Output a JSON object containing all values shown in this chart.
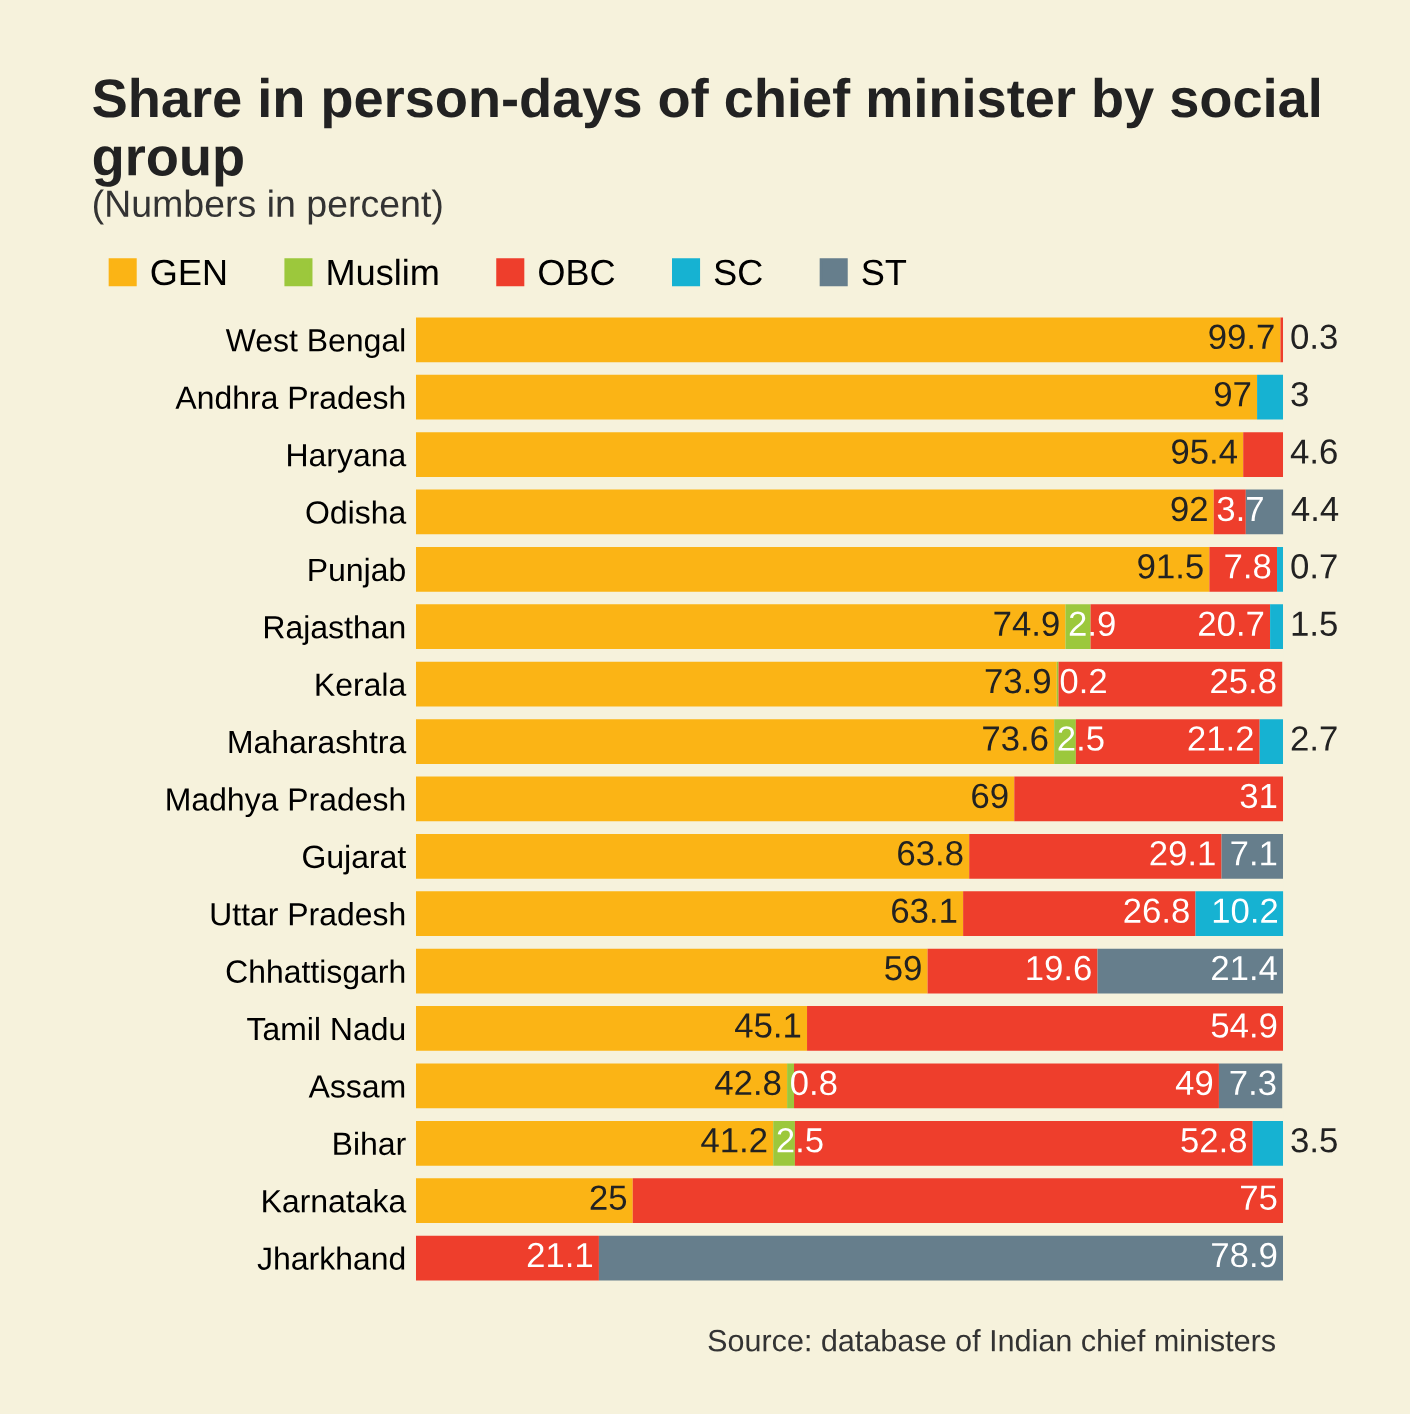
{
  "chart_data": {
    "type": "bar",
    "orientation": "horizontal",
    "stacked": true,
    "title": "Share in person-days of chief minister by social group",
    "subtitle": "(Numbers in percent)",
    "categories": [
      "West Bengal",
      "Andhra Pradesh",
      "Haryana",
      "Odisha",
      "Punjab",
      "Rajasthan",
      "Kerala",
      "Maharashtra",
      "Madhya Pradesh",
      "Gujarat",
      "Uttar Pradesh",
      "Chhattisgarh",
      "Tamil Nadu",
      "Assam",
      "Bihar",
      "Karnataka",
      "Jharkhand"
    ],
    "series": [
      {
        "name": "GEN",
        "color": "#fbb415",
        "values": [
          99.7,
          97,
          95.4,
          92,
          91.5,
          74.9,
          73.9,
          73.6,
          69,
          63.8,
          63.1,
          59,
          45.1,
          42.8,
          41.2,
          25,
          null
        ]
      },
      {
        "name": "Muslim",
        "color": "#9cc83c",
        "values": [
          null,
          null,
          null,
          null,
          null,
          2.9,
          0.2,
          2.5,
          null,
          null,
          null,
          null,
          null,
          0.8,
          2.5,
          null,
          null
        ]
      },
      {
        "name": "OBC",
        "color": "#ee3e2c",
        "values": [
          0.3,
          null,
          4.6,
          3.7,
          7.8,
          20.7,
          25.8,
          21.2,
          31,
          29.1,
          26.8,
          19.6,
          54.9,
          49,
          52.8,
          75,
          21.1
        ]
      },
      {
        "name": "SC",
        "color": "#16b2d2",
        "values": [
          null,
          3,
          null,
          null,
          0.7,
          1.5,
          null,
          2.7,
          null,
          null,
          10.2,
          null,
          null,
          null,
          3.5,
          null,
          null
        ]
      },
      {
        "name": "ST",
        "color": "#667e8c",
        "values": [
          null,
          null,
          null,
          4.4,
          null,
          null,
          null,
          null,
          null,
          7.1,
          null,
          21.4,
          null,
          7.3,
          null,
          null,
          78.9
        ]
      }
    ],
    "xlim": [
      0,
      100
    ],
    "tick_labels": "y",
    "grid": false,
    "legend": "top left",
    "data_labels": true,
    "annotations": [
      "Source: database of Indian chief ministers"
    ]
  }
}
